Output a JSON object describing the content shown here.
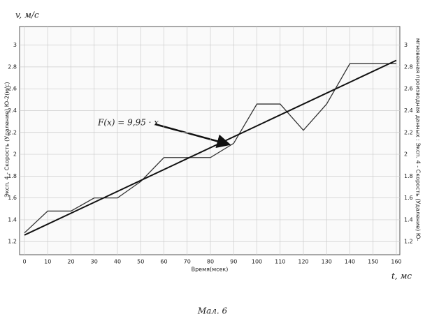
{
  "chart_data": {
    "type": "line",
    "y_label": "Эксп. 4 - Скорость (Удаление) Ю-2(м/с)",
    "y2_label": "мгновенная производная данных : Эксп. 4 - Скорость (Удаление) Ю-",
    "x_label": "Время(мсек)",
    "y_axis_name": "v, м/с",
    "x_axis_name": "t, мс",
    "caption": "Мал. 6",
    "annotation": "F(x) = 9,95 · x",
    "x": [
      0,
      10,
      20,
      30,
      40,
      50,
      60,
      70,
      80,
      90,
      100,
      110,
      120,
      130,
      140,
      150,
      160
    ],
    "series": [
      {
        "color": "#333333",
        "values": [
          1.28,
          1.48,
          1.48,
          1.6,
          1.6,
          1.75,
          1.97,
          1.97,
          1.97,
          2.1,
          2.46,
          2.46,
          2.22,
          2.46,
          2.83,
          2.83,
          2.83
        ]
      },
      {
        "color": "#111111",
        "x": [
          0,
          160
        ],
        "values": [
          1.26,
          2.86
        ]
      }
    ],
    "xlim": [
      0,
      160
    ],
    "ylim": [
      1.08,
      3.17
    ],
    "xticks": [
      0,
      10,
      20,
      30,
      40,
      50,
      60,
      70,
      80,
      90,
      100,
      110,
      120,
      130,
      140,
      150,
      160
    ],
    "yticks": [
      1.2,
      1.4,
      1.6,
      1.8,
      2,
      2.2,
      2.4,
      2.6,
      2.8,
      3
    ],
    "grid": true
  }
}
